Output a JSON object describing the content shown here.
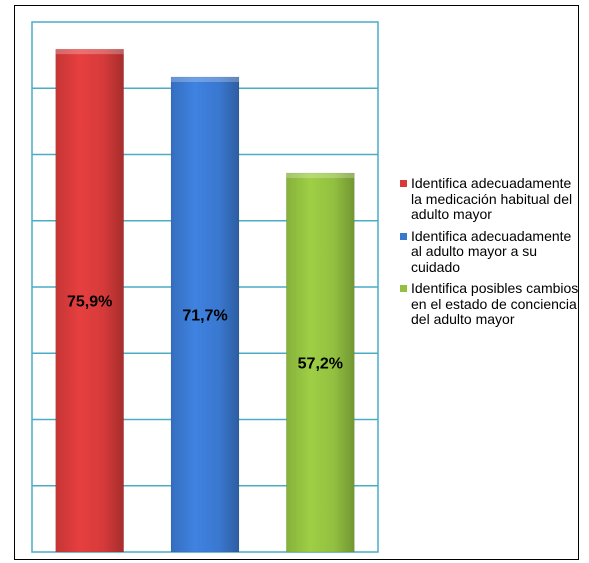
{
  "chart_data": {
    "type": "bar",
    "categories": [
      "Identifica adecuadamente la medicación habitual del adulto mayor",
      "Identifica adecuadamente al adulto mayor a su cuidado",
      "Identifica posibles cambios en el estado de conciencia del adulto mayor"
    ],
    "values": [
      75.9,
      71.7,
      57.2
    ],
    "data_labels": [
      "75,9%",
      "71,7%",
      "57,2%"
    ],
    "colors": [
      "#d63a3a",
      "#3a78d0",
      "#92c040"
    ],
    "ylim": [
      0,
      80
    ],
    "grid": true,
    "legend_position": "right",
    "title": "",
    "xlabel": "",
    "ylabel": ""
  },
  "legend": {
    "items": [
      {
        "label": "Identifica adecuadamente la medicación habitual del adulto mayor",
        "color": "#d63a3a"
      },
      {
        "label": "Identifica adecuadamente al adulto mayor a su cuidado",
        "color": "#3a78d0"
      },
      {
        "label": "Identifica posibles cambios en el estado de conciencia del adulto mayor",
        "color": "#92c040"
      }
    ]
  }
}
